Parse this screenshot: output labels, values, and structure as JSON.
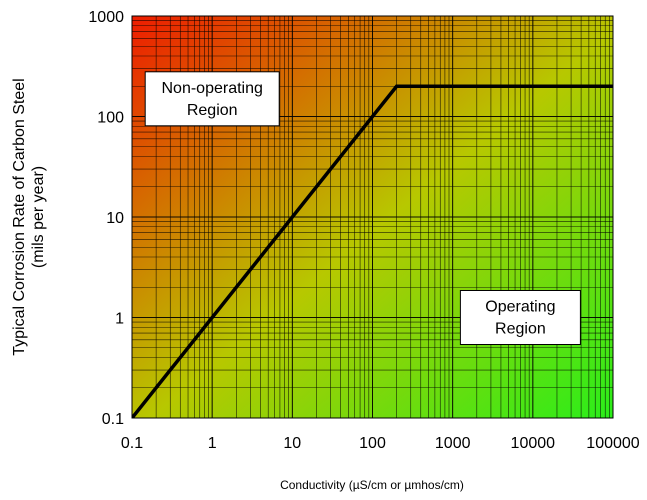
{
  "chart_data": {
    "type": "line",
    "xlabel": "Conductivity (µS/cm or µmhos/cm)",
    "ylabel": "Typical Corrosion Rate of Carbon Steel",
    "ylabel_line2": "(mils per year)",
    "x_scale": "log",
    "y_scale": "log",
    "xlim": [
      0.1,
      100000
    ],
    "ylim": [
      0.1,
      1000
    ],
    "x_ticks": [
      0.1,
      1,
      10,
      100,
      1000,
      10000,
      100000
    ],
    "x_tick_labels": [
      "0.1",
      "1",
      "10",
      "100",
      "1000",
      "10000",
      "100000"
    ],
    "y_ticks": [
      0.1,
      1,
      10,
      100,
      1000
    ],
    "y_tick_labels": [
      "0.1",
      "1",
      "10",
      "100",
      "1000"
    ],
    "grid": true,
    "series": [
      {
        "x": [
          0.1,
          200,
          100000
        ],
        "y": [
          0.1,
          200,
          200
        ]
      }
    ],
    "annotations": [
      {
        "lines": [
          "Non-operating",
          "Region"
        ],
        "x": 1,
        "y": 150
      },
      {
        "lines": [
          "Operating",
          "Region"
        ],
        "x": 7000,
        "y": 1
      }
    ],
    "background_gradient": {
      "top_left": "#ee1c00",
      "middle": "#b7c800",
      "bottom_right": "#2aee1a"
    },
    "line_color": "#000000"
  }
}
